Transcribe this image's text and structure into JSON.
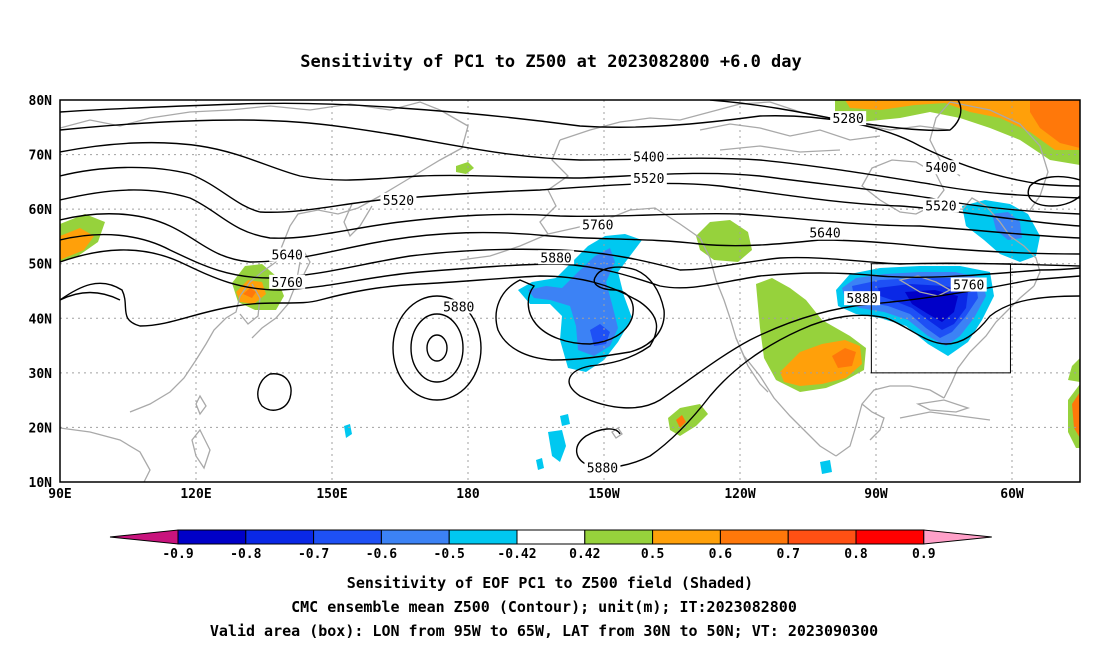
{
  "title": "Sensitivity of PC1 to Z500 at 2023082800 +6.0 day",
  "lat_ticks": [
    "80N",
    "70N",
    "60N",
    "50N",
    "40N",
    "30N",
    "20N",
    "10N"
  ],
  "lon_ticks": [
    "90E",
    "120E",
    "150E",
    "180",
    "150W",
    "120W",
    "90W",
    "60W"
  ],
  "contours": {
    "unit": "m",
    "labels": [
      {
        "value": "5280",
        "lon": -100,
        "lat": 76.5
      },
      {
        "value": "5400",
        "lon": -143,
        "lat": 69.5
      },
      {
        "value": "5400",
        "lon": -80,
        "lat": 67.5
      },
      {
        "value": "5520",
        "lon": 163,
        "lat": 61.5
      },
      {
        "value": "5520",
        "lon": -143,
        "lat": 65.5
      },
      {
        "value": "5520",
        "lon": -80,
        "lat": 60.5
      },
      {
        "value": "5640",
        "lon": 139,
        "lat": 51.5
      },
      {
        "value": "5640",
        "lon": -105,
        "lat": 55.5
      },
      {
        "value": "5760",
        "lon": 139,
        "lat": 46.5
      },
      {
        "value": "5760",
        "lon": -154,
        "lat": 57.0
      },
      {
        "value": "5760",
        "lon": -74,
        "lat": 46.0
      },
      {
        "value": "5880",
        "lon": -163,
        "lat": 51.0
      },
      {
        "value": "5880",
        "lon": 176,
        "lat": 42.0
      },
      {
        "value": "5880",
        "lon": -97,
        "lat": 43.5
      },
      {
        "value": "5880",
        "lon": -153,
        "lat": 12.5
      }
    ]
  },
  "valid_box": {
    "lon_min": -95,
    "lon_max": -65,
    "lat_min": 30,
    "lat_max": 50
  },
  "colorbar": {
    "labels": [
      "-0.9",
      "-0.8",
      "-0.7",
      "-0.6",
      "-0.5",
      "-0.42",
      "0.42",
      "0.5",
      "0.6",
      "0.7",
      "0.8",
      "0.9"
    ],
    "colors": [
      "#0000c8",
      "#0a28e6",
      "#1e50f5",
      "#3c82f5",
      "#00c8f0",
      "#ffffff",
      "#96d23c",
      "#ffa00a",
      "#ff780a",
      "#ff5014",
      "#ff0000"
    ],
    "low_extend_color": "#c8147d",
    "high_extend_color": "#ffa0c8"
  },
  "captions": [
    "Sensitivity of EOF PC1 to Z500 field (Shaded)",
    "CMC ensemble mean Z500 (Contour); unit(m); IT:2023082800",
    "Valid area (box): LON from 95W to 65W, LAT from 30N to 50N; VT: 2023090300"
  ]
}
